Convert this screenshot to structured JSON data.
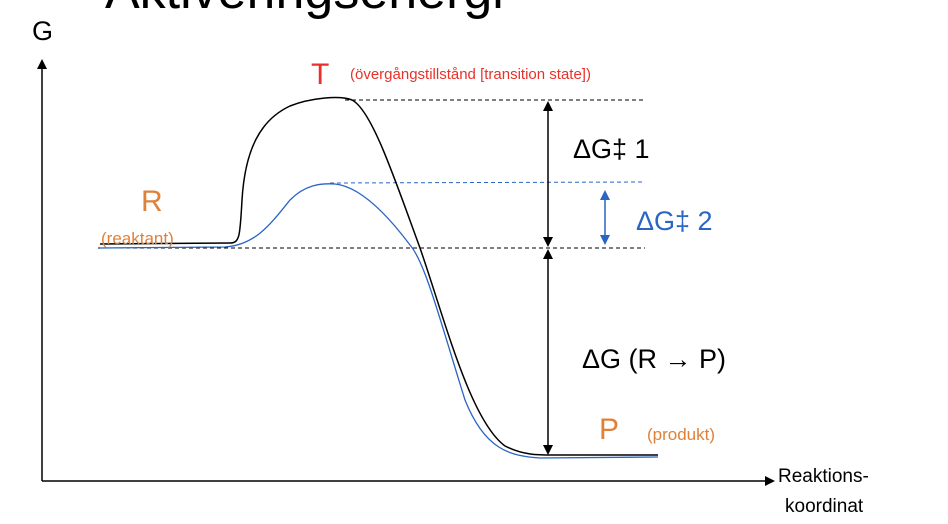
{
  "title": "Aktiveringsenergi",
  "y_axis_label": "G",
  "x_axis_label_line1": "Reaktions-",
  "x_axis_label_line2": "koordinat",
  "transition_state": {
    "symbol": "T",
    "label": "(övergångstillstånd [transition state])"
  },
  "reactant": {
    "symbol": "R",
    "label": "(reaktant)"
  },
  "product": {
    "symbol": "P",
    "label": "(produkt)"
  },
  "delta_g_1": "ΔG‡ 1",
  "delta_g_2": "ΔG‡ 2",
  "delta_g": "ΔG (R → P)",
  "colors": {
    "red": "#e8312a",
    "orange": "#e0813a",
    "blue": "#2a64c4",
    "black": "#000000"
  }
}
